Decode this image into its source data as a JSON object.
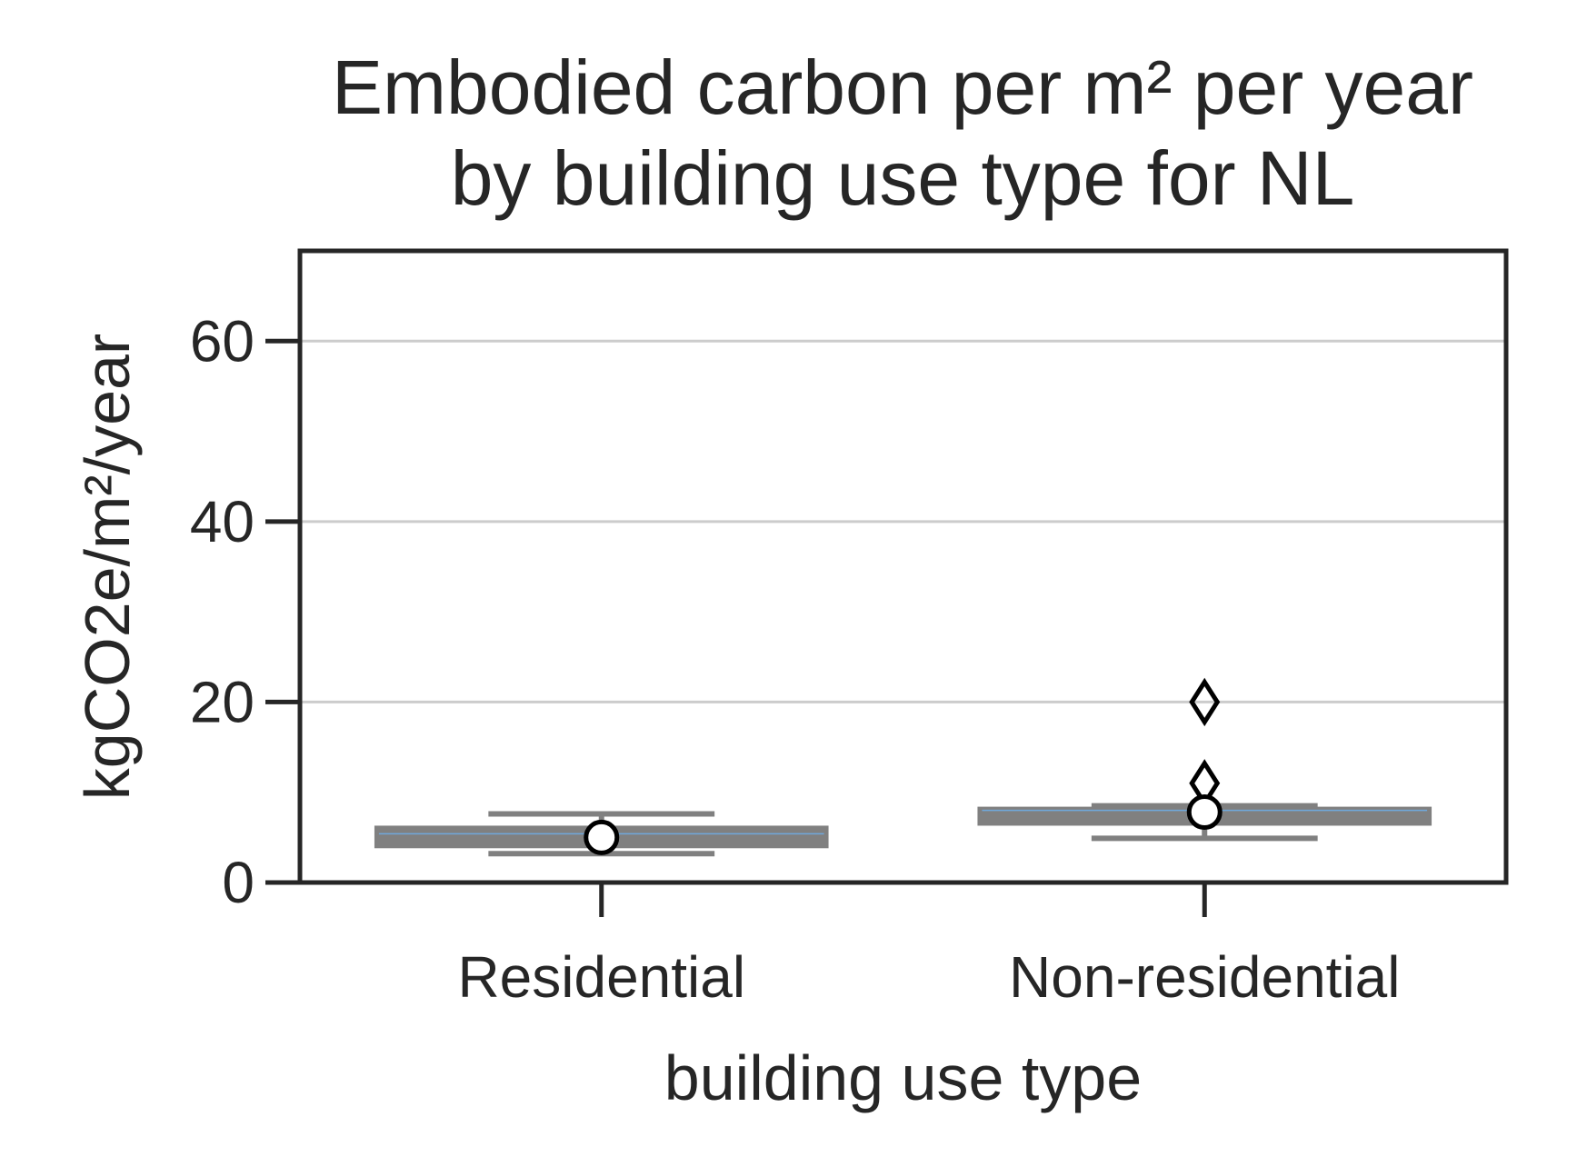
{
  "chart_data": {
    "type": "box",
    "title_lines": [
      "Embodied carbon per m² per year",
      "by building use type for NL"
    ],
    "xlabel": "building use type",
    "ylabel": "kgCO2e/m²/year",
    "categories": [
      "Residential",
      "Non-residential"
    ],
    "ylim": [
      0,
      70
    ],
    "yticks": [
      0,
      20,
      40,
      60
    ],
    "grid": true,
    "legend": "none",
    "boxes": [
      {
        "category": "Residential",
        "whisker_low": 3.2,
        "q1": 3.9,
        "median": 5.4,
        "q3": 6.2,
        "whisker_high": 7.6,
        "mean": 5.0,
        "outliers": []
      },
      {
        "category": "Non-residential",
        "whisker_low": 4.9,
        "q1": 6.4,
        "median": 8.0,
        "q3": 8.3,
        "whisker_high": 8.5,
        "mean": 7.8,
        "outliers": [
          11.0,
          20.0
        ]
      }
    ],
    "colors": {
      "box": "#808080",
      "median_line": "#6fa8dc",
      "grid": "#cccccc",
      "axes": "#262626",
      "mean_marker_fill": "#ffffff",
      "mean_marker_edge": "#000000"
    }
  }
}
